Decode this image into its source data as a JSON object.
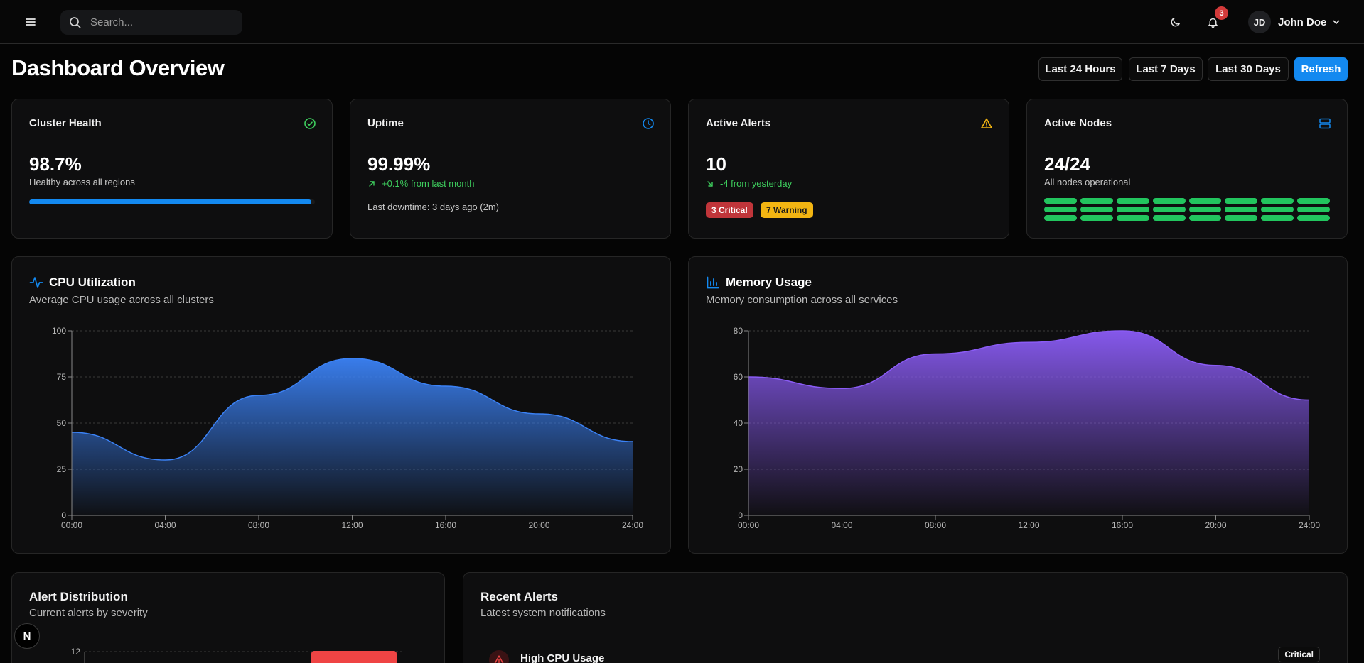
{
  "header": {
    "search_placeholder": "Search...",
    "notifications_count": "3",
    "user_initials": "JD",
    "user_name": "John Doe"
  },
  "page": {
    "title": "Dashboard Overview",
    "ranges": [
      "Last 24 Hours",
      "Last 7 Days",
      "Last 30 Days"
    ],
    "refresh_label": "Refresh"
  },
  "cards": {
    "cluster_health": {
      "title": "Cluster Health",
      "value": "98.7%",
      "subtitle": "Healthy across all regions",
      "progress": 0.987,
      "icon": "check-circle-icon",
      "icon_color": "#3ecf5e"
    },
    "uptime": {
      "title": "Uptime",
      "value": "99.99%",
      "trend": "+0.1% from last month",
      "note": "Last downtime: 3 days ago (2m)",
      "icon": "clock-icon",
      "icon_color": "#1389f0"
    },
    "active_alerts": {
      "title": "Active Alerts",
      "value": "10",
      "trend": "-4 from yesterday",
      "critical": "3 Critical",
      "warning": "7 Warning",
      "icon": "alert-triangle-icon",
      "icon_color": "#f3b512"
    },
    "active_nodes": {
      "title": "Active Nodes",
      "value": "24/24",
      "subtitle": "All nodes operational",
      "nodes_total": 24,
      "nodes_active": 24,
      "icon": "server-icon",
      "icon_color": "#1389f0"
    }
  },
  "cpu_chart": {
    "title": "CPU Utilization",
    "subtitle": "Average CPU usage across all clusters"
  },
  "memory_chart": {
    "title": "Memory Usage",
    "subtitle": "Memory consumption across all services"
  },
  "alert_distribution": {
    "title": "Alert Distribution",
    "subtitle": "Current alerts by severity",
    "first_tick": "12"
  },
  "recent_alerts": {
    "title": "Recent Alerts",
    "subtitle": "Latest system notifications",
    "items": [
      {
        "title": "High CPU Usage",
        "severity": "Critical"
      }
    ]
  },
  "fab_label": "N",
  "chart_data": [
    {
      "type": "area",
      "x": [
        "00:00",
        "04:00",
        "08:00",
        "12:00",
        "16:00",
        "20:00",
        "24:00"
      ],
      "y_ticks": [
        0,
        25,
        50,
        75,
        100
      ],
      "ylim": [
        0,
        100
      ],
      "series": [
        {
          "values": [
            45,
            30,
            65,
            85,
            70,
            55,
            40
          ],
          "color": "#3b82f6"
        }
      ],
      "grid": true
    },
    {
      "type": "area",
      "x": [
        "00:00",
        "04:00",
        "08:00",
        "12:00",
        "16:00",
        "20:00",
        "24:00"
      ],
      "y_ticks": [
        0,
        20,
        40,
        60,
        80
      ],
      "ylim": [
        0,
        80
      ],
      "series": [
        {
          "values": [
            60,
            55,
            70,
            75,
            80,
            65,
            50
          ],
          "color": "#8b5cf6"
        }
      ],
      "grid": true
    }
  ]
}
